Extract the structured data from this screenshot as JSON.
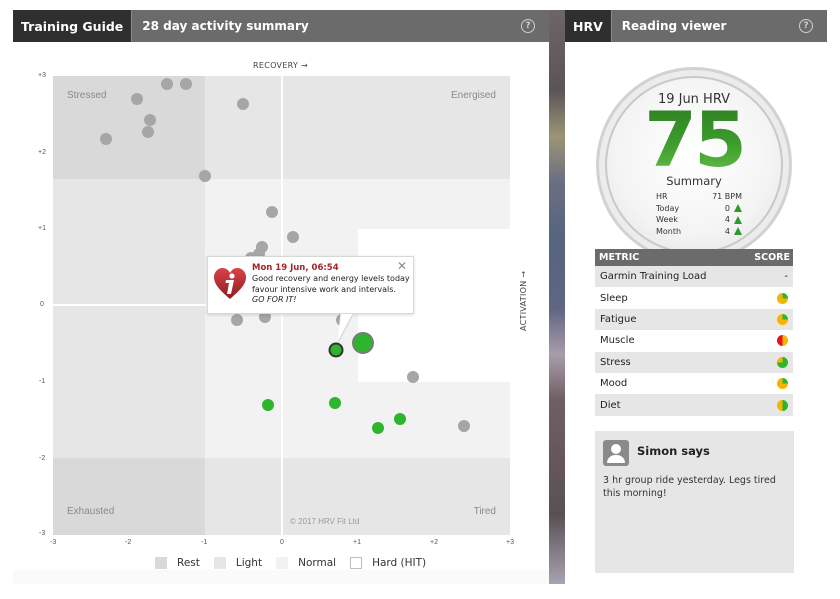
{
  "left_panel": {
    "tab_label": "Training Guide",
    "subtitle": "28 day activity summary",
    "help_icon": "?"
  },
  "right_panel": {
    "tab_label": "HRV",
    "subtitle": "Reading viewer",
    "help_icon": "?"
  },
  "gauge": {
    "title": "19 Jun HRV",
    "value": "75",
    "summary_label": "Summary",
    "rows": [
      {
        "label": "HR",
        "value": "71 BPM",
        "trend": ""
      },
      {
        "label": "Today",
        "value": "0",
        "trend": "up"
      },
      {
        "label": "Week",
        "value": "4",
        "trend": "up"
      },
      {
        "label": "Month",
        "value": "4",
        "trend": "up"
      }
    ]
  },
  "metrics": {
    "header_metric": "METRIC",
    "header_score": "SCORE",
    "rows": [
      {
        "label": "Garmin Training Load",
        "score": "-",
        "pie": null
      },
      {
        "label": "Sleep",
        "score": "",
        "pie": {
          "green_pct": 25,
          "base": "#f5b400"
        }
      },
      {
        "label": "Fatigue",
        "score": "",
        "pie": {
          "green_pct": 25,
          "base": "#f5b400"
        }
      },
      {
        "label": "Muscle",
        "score": "",
        "pie": {
          "red_pct": 50,
          "base": "#f5b400"
        }
      },
      {
        "label": "Stress",
        "score": "",
        "pie": {
          "green_pct": 75,
          "base": "#f5b400"
        }
      },
      {
        "label": "Mood",
        "score": "",
        "pie": {
          "green_pct": 25,
          "base": "#f5b400"
        }
      },
      {
        "label": "Diet",
        "score": "",
        "pie": {
          "green_pct": 50,
          "base": "#f5b400"
        }
      }
    ]
  },
  "says": {
    "name": "Simon says",
    "message": "3 hr group ride yesterday. Legs tired this morning!"
  },
  "tooltip": {
    "title": "Mon 19 Jun, 06:54",
    "body": "Good recovery and energy levels today favour intensive work and intervals.",
    "emphasis": "GO FOR IT!",
    "close": "✕"
  },
  "legend": [
    {
      "label": "Rest",
      "key": "rest"
    },
    {
      "label": "Light",
      "key": "light"
    },
    {
      "label": "Normal",
      "key": "normal"
    },
    {
      "label": "Hard (HIT)",
      "key": "hard"
    }
  ],
  "colors": {
    "header_bg": "#6b6b6b",
    "tab_bg": "#2f2f2f",
    "rest": "#d9d9d9",
    "light": "#e6e6e6",
    "normal": "#f2f2f2",
    "hard": "#ffffff",
    "point_past": "#a6a6a6",
    "point_green": "#2db52d",
    "tooltip_title": "#a3242a",
    "gauge_value": "#3a9a2a"
  },
  "chart_data": {
    "type": "scatter",
    "title": "28 day activity summary",
    "xlabel": "RECOVERY →",
    "ylabel": "ACTIVATION →",
    "xlim": [
      -3,
      3
    ],
    "ylim": [
      -3,
      3
    ],
    "x_ticks": [
      "-3",
      "-2",
      "-1",
      "0",
      "+1",
      "+2",
      "+3"
    ],
    "y_ticks": [
      "+3",
      "+2",
      "+1",
      "0",
      "-1",
      "-2",
      "-3"
    ],
    "grid": false,
    "legend_position": "bottom",
    "quadrant_labels": {
      "top_left": "Stressed",
      "top_right": "Energised",
      "bottom_left": "Exhausted",
      "bottom_right": "Tired"
    },
    "annotation": "© 2017 HRV Fit Ltd",
    "zones": [
      {
        "name": "Rest",
        "x": [
          -3,
          -1
        ],
        "y": [
          1.65,
          3
        ]
      },
      {
        "name": "Rest",
        "x": [
          -3,
          -1
        ],
        "y": [
          -3,
          -2
        ]
      },
      {
        "name": "Normal",
        "x": [
          -1,
          3
        ],
        "y": [
          -2,
          1.65
        ]
      },
      {
        "name": "Hard (HIT)",
        "x": [
          1,
          3
        ],
        "y": [
          -1,
          1
        ]
      },
      {
        "name": "Light",
        "x": [
          -3,
          3
        ],
        "y": [
          -3,
          3
        ],
        "note": "background"
      }
    ],
    "series": [
      {
        "name": "Past readings",
        "color": "#a6a6a6",
        "points": [
          {
            "x": -1.5,
            "y": 2.9
          },
          {
            "x": -1.25,
            "y": 2.9
          },
          {
            "x": -1.9,
            "y": 2.7
          },
          {
            "x": -1.73,
            "y": 2.43
          },
          {
            "x": -1.75,
            "y": 2.27
          },
          {
            "x": -2.3,
            "y": 2.17
          },
          {
            "x": -0.5,
            "y": 2.63
          },
          {
            "x": -1.0,
            "y": 1.69
          },
          {
            "x": -0.12,
            "y": 1.22
          },
          {
            "x": 0.15,
            "y": 0.89
          },
          {
            "x": -0.25,
            "y": 0.76
          },
          {
            "x": -0.3,
            "y": 0.67
          },
          {
            "x": -0.4,
            "y": 0.62
          },
          {
            "x": -0.58,
            "y": -0.19
          },
          {
            "x": -0.22,
            "y": -0.15
          },
          {
            "x": 0.8,
            "y": -0.19
          },
          {
            "x": 1.73,
            "y": -0.93
          },
          {
            "x": 2.4,
            "y": -1.57
          }
        ]
      },
      {
        "name": "Recent readings",
        "color": "#2db52d",
        "points": [
          {
            "x": -0.18,
            "y": -1.3
          },
          {
            "x": 0.7,
            "y": -1.28
          },
          {
            "x": 1.27,
            "y": -1.6
          },
          {
            "x": 1.55,
            "y": -1.48
          },
          {
            "x": 0.72,
            "y": -0.58,
            "style": "outlined"
          },
          {
            "x": 1.07,
            "y": -0.49,
            "style": "selected",
            "label": "Mon 19 Jun, 06:54"
          }
        ]
      }
    ]
  }
}
